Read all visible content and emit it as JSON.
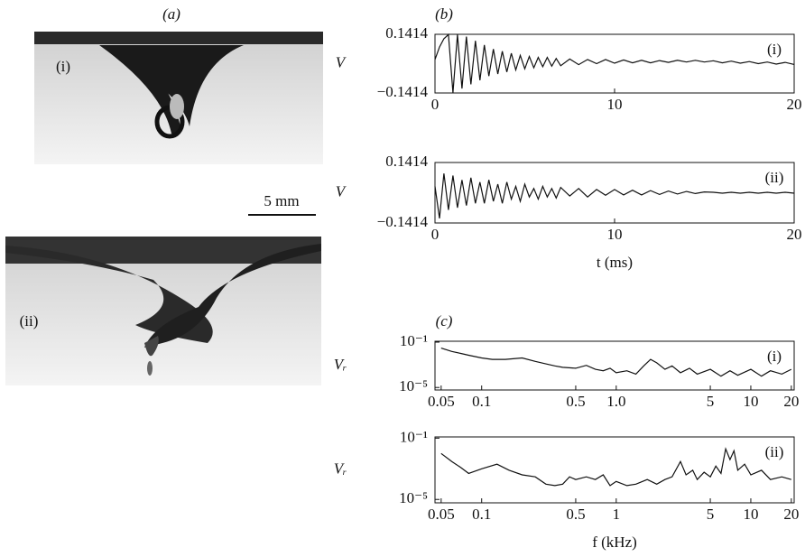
{
  "photos": {
    "label": "(a)",
    "panels": [
      "(i)",
      "(ii)"
    ],
    "scale_bar": "5 mm"
  },
  "chart_data": [
    {
      "type": "line",
      "panel_label": "(b)",
      "annotation": "(i)",
      "ylabel": "V",
      "color": "#111",
      "x": [
        0,
        0.25,
        0.5,
        0.75,
        1,
        1.25,
        1.5,
        1.75,
        2,
        2.25,
        2.5,
        2.75,
        3,
        3.25,
        3.5,
        3.75,
        4,
        4.25,
        4.5,
        4.75,
        5,
        5.25,
        5.5,
        5.75,
        6,
        6.25,
        6.5,
        6.75,
        7,
        7.5,
        8,
        8.5,
        9,
        9.5,
        10,
        10.5,
        11,
        11.5,
        12,
        12.5,
        13,
        13.5,
        14,
        14.5,
        15,
        15.5,
        16,
        16.5,
        17,
        17.5,
        18,
        18.5,
        19,
        19.5,
        20
      ],
      "values": [
        0.02,
        0.08,
        0.12,
        0.14,
        -0.14,
        0.14,
        -0.12,
        0.13,
        -0.1,
        0.11,
        -0.08,
        0.09,
        -0.06,
        0.07,
        -0.05,
        0.06,
        -0.04,
        0.05,
        -0.03,
        0.04,
        -0.025,
        0.035,
        -0.02,
        0.03,
        -0.015,
        0.03,
        -0.012,
        0.025,
        -0.01,
        0.022,
        -0.005,
        0.02,
        0,
        0.02,
        0.002,
        0.018,
        0.004,
        0.016,
        0.004,
        0.015,
        0.006,
        0.016,
        0.008,
        0.016,
        0.008,
        0.014,
        0.004,
        0.012,
        0.002,
        0.01,
        0,
        0.008,
        -0.002,
        0.006,
        -0.004
      ],
      "xlim": [
        0,
        20
      ],
      "xticks": [
        0,
        10,
        20
      ],
      "ylim": [
        -0.1414,
        0.1414
      ],
      "yticks": [
        {
          "value": -0.1414,
          "label": "−0.1414"
        },
        0.1414
      ]
    },
    {
      "type": "line",
      "annotation": "(ii)",
      "ylabel": "V",
      "xlabel": "t (ms)",
      "color": "#111",
      "x": [
        0,
        0.25,
        0.5,
        0.75,
        1,
        1.25,
        1.5,
        1.75,
        2,
        2.25,
        2.5,
        2.75,
        3,
        3.25,
        3.5,
        3.75,
        4,
        4.25,
        4.5,
        4.75,
        5,
        5.25,
        5.5,
        5.75,
        6,
        6.25,
        6.5,
        6.75,
        7,
        7.5,
        8,
        8.5,
        9,
        9.5,
        10,
        10.5,
        11,
        11.5,
        12,
        12.5,
        13,
        13.5,
        14,
        14.5,
        15,
        15.5,
        16,
        16.5,
        17,
        17.5,
        18,
        18.5,
        19,
        19.5,
        20
      ],
      "values": [
        0.03,
        -0.12,
        0.09,
        -0.08,
        0.08,
        -0.07,
        0.06,
        -0.06,
        0.07,
        -0.05,
        0.05,
        -0.05,
        0.06,
        -0.04,
        0.04,
        -0.05,
        0.05,
        -0.03,
        0.03,
        -0.04,
        0.04,
        -0.02,
        0.02,
        -0.03,
        0.03,
        -0.02,
        0.02,
        -0.025,
        0.025,
        -0.015,
        0.02,
        -0.02,
        0.015,
        -0.012,
        0.015,
        -0.01,
        0.012,
        -0.01,
        0.01,
        -0.008,
        0.008,
        -0.006,
        0.006,
        -0.004,
        0.004,
        0.002,
        -0.002,
        0.002,
        -0.002,
        0.002,
        -0.002,
        0.002,
        -0.002,
        0.002,
        -0.002
      ],
      "xlim": [
        0,
        20
      ],
      "xticks": [
        0,
        10,
        20
      ],
      "ylim": [
        -0.1414,
        0.1414
      ],
      "yticks": [
        {
          "value": -0.1414,
          "label": "−0.1414"
        },
        0.1414
      ]
    },
    {
      "type": "line",
      "panel_label": "(c)",
      "annotation": "(i)",
      "ylabel": "Vᵣ",
      "color": "#111",
      "xscale": "log",
      "yscale": "log",
      "x": [
        0.05,
        0.06,
        0.07,
        0.08,
        0.1,
        0.12,
        0.15,
        0.2,
        0.25,
        0.3,
        0.35,
        0.4,
        0.5,
        0.6,
        0.7,
        0.8,
        0.9,
        1,
        1.2,
        1.4,
        1.6,
        1.8,
        2,
        2.3,
        2.6,
        3,
        3.5,
        4,
        5,
        6,
        7,
        8,
        10,
        12,
        14,
        17,
        20
      ],
      "values": [
        0.03,
        0.015,
        0.01,
        0.007,
        0.004,
        0.003,
        0.003,
        0.004,
        0.002,
        0.0012,
        0.0008,
        0.0006,
        0.0005,
        0.0009,
        0.0004,
        0.0003,
        0.0005,
        0.0002,
        0.0003,
        0.00015,
        0.0008,
        0.003,
        0.0015,
        0.0004,
        0.0008,
        0.0002,
        0.0005,
        0.00015,
        0.0004,
        0.0001,
        0.0003,
        0.00012,
        0.0004,
        0.0001,
        0.0003,
        0.00015,
        0.0004
      ],
      "xlim": [
        0.045,
        21
      ],
      "xticks": [
        0.05,
        0.1,
        0.5,
        {
          "value": 1,
          "label": "1.0"
        },
        5,
        10,
        20
      ],
      "ylim": [
        6e-06,
        0.12
      ],
      "yticks": [
        {
          "value": 1e-05,
          "label": "10⁻⁵"
        },
        {
          "value": 0.1,
          "label": "10⁻¹"
        }
      ]
    },
    {
      "type": "line",
      "annotation": "(ii)",
      "ylabel": "Vᵣ",
      "xlabel": "f (kHz)",
      "color": "#111",
      "xscale": "log",
      "yscale": "log",
      "x": [
        0.05,
        0.06,
        0.07,
        0.08,
        0.1,
        0.13,
        0.16,
        0.2,
        0.25,
        0.3,
        0.35,
        0.4,
        0.45,
        0.5,
        0.6,
        0.7,
        0.8,
        0.9,
        1,
        1.2,
        1.4,
        1.7,
        2,
        2.3,
        2.6,
        3,
        3.3,
        3.7,
        4,
        4.5,
        5,
        5.5,
        6,
        6.5,
        7,
        7.5,
        8,
        9,
        10,
        12,
        14,
        17,
        20
      ],
      "values": [
        0.01,
        0.003,
        0.0012,
        0.0005,
        0.001,
        0.002,
        0.0008,
        0.0004,
        0.0003,
        0.0001,
        8e-05,
        0.0001,
        0.0003,
        0.0002,
        0.0003,
        0.0002,
        0.0004,
        8e-05,
        0.00015,
        8e-05,
        0.0001,
        0.0002,
        0.0001,
        0.0002,
        0.0003,
        0.003,
        0.0004,
        0.0008,
        0.0002,
        0.0006,
        0.0003,
        0.0015,
        0.0005,
        0.02,
        0.004,
        0.015,
        0.0008,
        0.002,
        0.0004,
        0.0008,
        0.0002,
        0.0003,
        0.0002
      ],
      "xlim": [
        0.045,
        21
      ],
      "xticks": [
        0.05,
        0.1,
        0.5,
        1,
        5,
        10,
        20
      ],
      "ylim": [
        6e-06,
        0.12
      ],
      "yticks": [
        {
          "value": 1e-05,
          "label": "10⁻⁵"
        },
        {
          "value": 0.1,
          "label": "10⁻¹"
        }
      ]
    }
  ]
}
